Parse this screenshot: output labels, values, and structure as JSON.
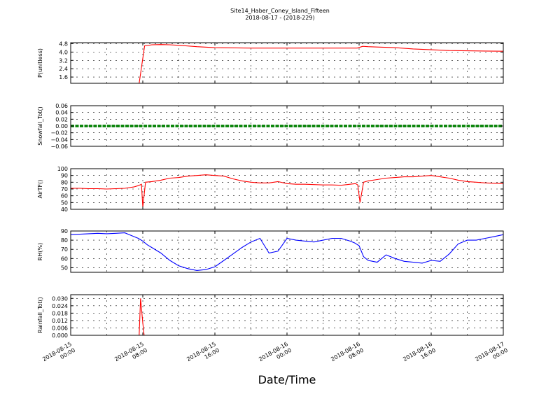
{
  "title_line1": "Site14_Haber_Coney_Island_Fifteen",
  "title_line2": "2018-08-17 - (2018-229)",
  "xlabel": "Date/Time",
  "colors": {
    "red": "#ff0000",
    "green": "#008000",
    "blue": "#0000ff",
    "axis": "#000000"
  },
  "chart_data": [
    {
      "type": "line",
      "ylabel": "P(unitless)",
      "color": "#ff0000",
      "ylim": [
        1.0,
        4.9
      ],
      "yticks": [
        1.6,
        2.4,
        3.2,
        4.0,
        4.8
      ],
      "ytick_labels": [
        "1.6",
        "2.4",
        "3.2",
        "4.0",
        "4.8"
      ],
      "x": [
        0,
        6,
        7.6,
        8.2,
        9,
        10,
        11,
        12,
        14,
        16,
        20,
        24,
        28,
        31.8,
        32.4,
        33,
        34,
        36,
        38,
        40,
        42,
        44,
        46,
        48
      ],
      "y": [
        1.0,
        1.0,
        1.0,
        4.6,
        4.7,
        4.72,
        4.7,
        4.65,
        4.52,
        4.42,
        4.38,
        4.38,
        4.38,
        4.38,
        4.55,
        4.52,
        4.48,
        4.42,
        4.3,
        4.22,
        4.15,
        4.12,
        4.1,
        4.08
      ]
    },
    {
      "type": "line",
      "ylabel": "Snowfall_Tot()",
      "color": "#008000",
      "ylim": [
        -0.06,
        0.06
      ],
      "yticks": [
        -0.06,
        -0.04,
        -0.02,
        0.0,
        0.02,
        0.04,
        0.06
      ],
      "ytick_labels": [
        "−0.06",
        "−0.04",
        "−0.02",
        "0.00",
        "0.02",
        "0.04",
        "0.06"
      ],
      "x": [
        0,
        48
      ],
      "y": [
        0,
        0
      ]
    },
    {
      "type": "line",
      "ylabel": "AirTF()",
      "color": "#ff0000",
      "ylim": [
        40,
        100
      ],
      "yticks": [
        40,
        50,
        60,
        70,
        80,
        90,
        100
      ],
      "ytick_labels": [
        "40",
        "50",
        "60",
        "70",
        "80",
        "90",
        "100"
      ],
      "x": [
        0,
        1,
        2,
        3,
        4,
        5,
        6,
        7,
        7.5,
        7.85,
        8.0,
        8.3,
        9,
        10,
        11,
        12,
        13,
        14,
        15,
        16,
        17,
        18,
        19,
        20,
        21,
        22,
        23,
        24,
        25,
        26,
        27,
        28,
        29,
        30,
        31,
        31.6,
        31.85,
        32.1,
        32.5,
        33,
        34,
        35,
        36,
        37,
        38,
        39,
        40,
        41,
        42,
        43,
        44,
        45,
        46,
        47,
        48
      ],
      "y": [
        71,
        71,
        70.5,
        70.5,
        70,
        70.5,
        71,
        73,
        75,
        77,
        43,
        80,
        81,
        83,
        86,
        87,
        89,
        90,
        91,
        90,
        89,
        85,
        82,
        80,
        79,
        79,
        81,
        78,
        77,
        77,
        76.5,
        76,
        76,
        75.5,
        77,
        78,
        76,
        50,
        80,
        82,
        84,
        86,
        87,
        88,
        88,
        89,
        90,
        88,
        86,
        83,
        81,
        80,
        79,
        78.5,
        78
      ]
    },
    {
      "type": "line",
      "ylabel": "RH(%)",
      "color": "#0000ff",
      "ylim": [
        45,
        90
      ],
      "yticks": [
        50,
        60,
        70,
        80,
        90
      ],
      "ytick_labels": [
        "50",
        "60",
        "70",
        "80",
        "90"
      ],
      "x": [
        0,
        1,
        2,
        3,
        4,
        5,
        6,
        6.5,
        7,
        7.5,
        8,
        8.5,
        9,
        10,
        11,
        12,
        13,
        14,
        15,
        16,
        17,
        18,
        19,
        20,
        21,
        22,
        23,
        23.5,
        24,
        25,
        26,
        27,
        28,
        29,
        30,
        31,
        31.5,
        32,
        32.5,
        33,
        34,
        35,
        36,
        37,
        38,
        39,
        40,
        41,
        42,
        43,
        44,
        45,
        46,
        47,
        48
      ],
      "y": [
        86,
        86.5,
        87,
        87.5,
        87,
        87.5,
        88,
        86,
        84,
        82,
        79,
        75,
        72,
        66,
        58,
        52,
        49,
        47,
        48,
        51,
        58,
        65,
        72,
        78,
        82,
        66,
        68,
        75,
        82,
        80,
        79,
        78,
        80,
        82,
        82,
        79,
        77,
        74,
        62,
        58,
        56,
        64,
        60,
        57,
        56,
        55,
        58,
        57,
        65,
        76,
        80,
        80,
        82,
        84,
        86
      ]
    },
    {
      "type": "line",
      "ylabel": "Rainfall_Tot()",
      "color": "#ff0000",
      "ylim": [
        0,
        0.033
      ],
      "yticks": [
        0.0,
        0.006,
        0.012,
        0.018,
        0.024,
        0.03
      ],
      "ytick_labels": [
        "0.000",
        "0.006",
        "0.012",
        "0.018",
        "0.024",
        "0.030"
      ],
      "x": [
        0,
        7.6,
        7.75,
        8.0,
        8.15,
        48
      ],
      "y": [
        0,
        0,
        0.03,
        0.01,
        0,
        0
      ]
    }
  ],
  "x_axis": {
    "xlim": [
      0,
      48
    ],
    "tick_positions": [
      0,
      8,
      16,
      24,
      32,
      40,
      48
    ],
    "tick_labels": [
      [
        "2018-08-15",
        "00:00"
      ],
      [
        "2018-08-15",
        "08:00"
      ],
      [
        "2018-08-15",
        "16:00"
      ],
      [
        "2018-08-16",
        "00:00"
      ],
      [
        "2018-08-16",
        "08:00"
      ],
      [
        "2018-08-16",
        "16:00"
      ],
      [
        "2018-08-17",
        "00:00"
      ]
    ]
  }
}
